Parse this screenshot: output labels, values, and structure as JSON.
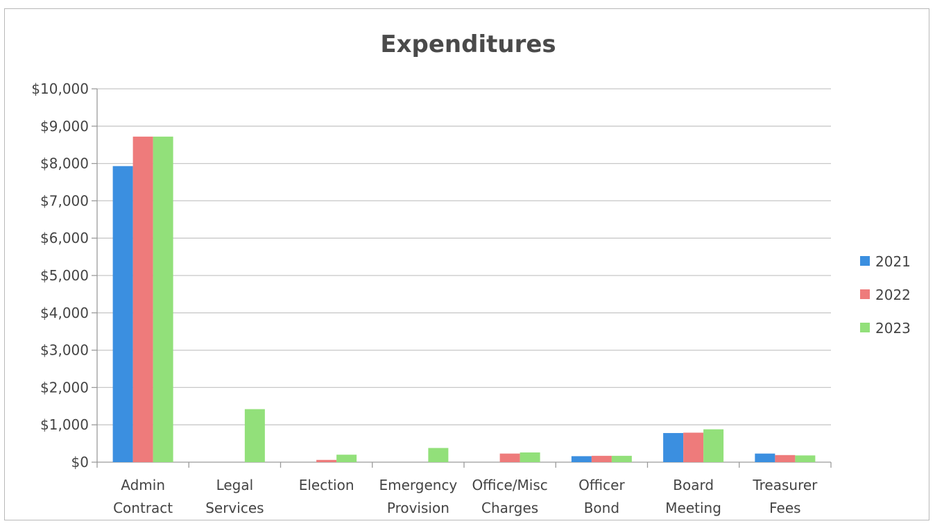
{
  "chart_data": {
    "type": "bar",
    "title": "Expenditures",
    "xlabel": "",
    "ylabel": "",
    "ylim": [
      0,
      10000
    ],
    "yticks": [
      "$0",
      "$1,000",
      "$2,000",
      "$3,000",
      "$4,000",
      "$5,000",
      "$6,000",
      "$7,000",
      "$8,000",
      "$9,000",
      "$10,000"
    ],
    "ytick_values": [
      0,
      1000,
      2000,
      3000,
      4000,
      5000,
      6000,
      7000,
      8000,
      9000,
      10000
    ],
    "categories": [
      [
        "Admin",
        "Contract"
      ],
      [
        "Legal",
        "Services"
      ],
      [
        "Election"
      ],
      [
        "Emergency",
        "Provision"
      ],
      [
        "Office/Misc",
        "Charges"
      ],
      [
        "Officer",
        "Bond"
      ],
      [
        "Board",
        "Meeting"
      ],
      [
        "Treasurer",
        "Fees"
      ]
    ],
    "series": [
      {
        "name": "2021",
        "color": "#3b8fe0",
        "values": [
          7930,
          0,
          0,
          0,
          0,
          160,
          780,
          230
        ]
      },
      {
        "name": "2022",
        "color": "#ee7b7b",
        "values": [
          8720,
          0,
          60,
          0,
          230,
          170,
          790,
          190
        ]
      },
      {
        "name": "2023",
        "color": "#92e07a",
        "values": [
          8720,
          1420,
          200,
          380,
          260,
          170,
          880,
          180
        ]
      }
    ],
    "grid": true,
    "legend_position": "right"
  }
}
